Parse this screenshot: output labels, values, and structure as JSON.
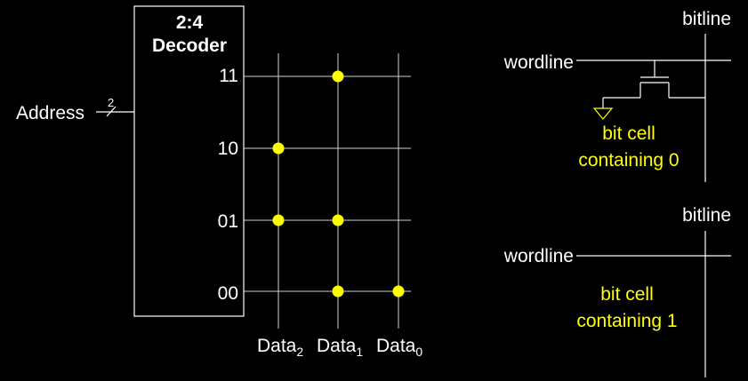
{
  "decoder": {
    "title_line1": "2:4",
    "title_line2": "Decoder",
    "outputs": [
      "11",
      "10",
      "01",
      "00"
    ]
  },
  "address": {
    "label": "Address",
    "bus_width": "2"
  },
  "data_columns": [
    {
      "base": "Data",
      "sub": "2"
    },
    {
      "base": "Data",
      "sub": "1"
    },
    {
      "base": "Data",
      "sub": "0"
    }
  ],
  "dots": {
    "11": [
      false,
      true,
      false
    ],
    "10": [
      true,
      false,
      false
    ],
    "01": [
      true,
      true,
      false
    ],
    "00": [
      false,
      true,
      true
    ]
  },
  "cell0": {
    "bitline_label": "bitline",
    "wordline_label": "wordline",
    "caption_line1": "bit cell",
    "caption_line2": "containing 0"
  },
  "cell1": {
    "bitline_label": "bitline",
    "wordline_label": "wordline",
    "caption_line1": "bit cell",
    "caption_line2": "containing 1"
  },
  "colors": {
    "background": "#000000",
    "foreground": "#ffffff",
    "accent": "#ffff00"
  }
}
